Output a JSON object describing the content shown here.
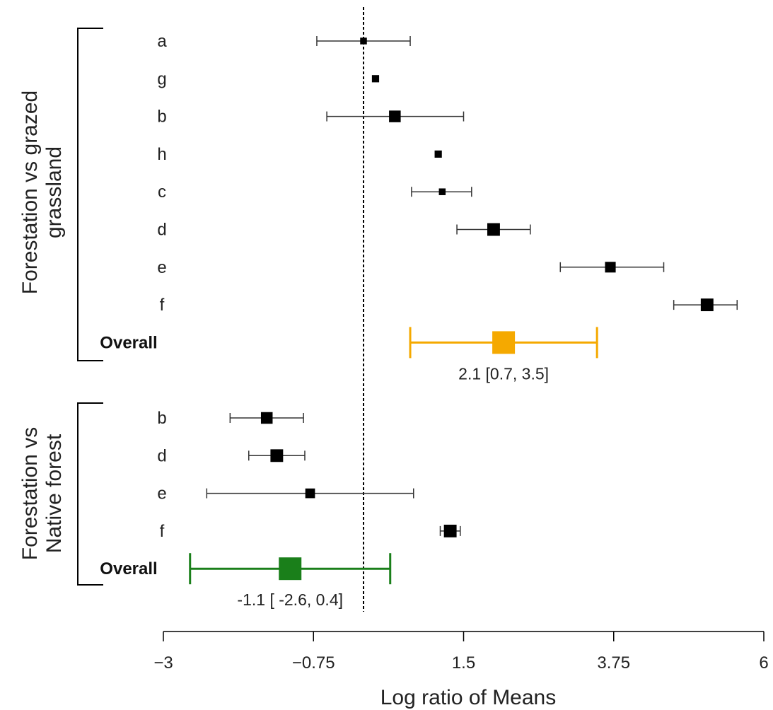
{
  "chart_data": {
    "type": "forest",
    "xlabel": "Log ratio of Means",
    "xlim": [
      -3,
      6
    ],
    "x_ticks": [
      -3,
      -0.75,
      1.5,
      3.75,
      6
    ],
    "x_tick_labels": [
      "−3",
      "−0.75",
      "1.5",
      "3.75",
      "6"
    ],
    "reference_line": 0,
    "reference_style": "dotted",
    "point_color": "#000000",
    "groups": [
      {
        "label_lines": [
          "Forestation vs grazed",
          "grassland"
        ],
        "rows": [
          {
            "label": "a",
            "est": 0.0,
            "lo": -0.7,
            "hi": 0.7,
            "weight": 0.25
          },
          {
            "label": "g",
            "est": 0.18,
            "lo": null,
            "hi": null,
            "weight": 0.3
          },
          {
            "label": "b",
            "est": 0.47,
            "lo": -0.55,
            "hi": 1.5,
            "weight": 0.75
          },
          {
            "label": "h",
            "est": 1.12,
            "lo": null,
            "hi": null,
            "weight": 0.3
          },
          {
            "label": "c",
            "est": 1.18,
            "lo": 0.72,
            "hi": 1.62,
            "weight": 0.25
          },
          {
            "label": "d",
            "est": 1.95,
            "lo": 1.4,
            "hi": 2.5,
            "weight": 0.85
          },
          {
            "label": "e",
            "est": 3.7,
            "lo": 2.95,
            "hi": 4.5,
            "weight": 0.65
          },
          {
            "label": "f",
            "est": 5.15,
            "lo": 4.65,
            "hi": 5.6,
            "weight": 0.85
          }
        ],
        "overall": {
          "label": "Overall",
          "est": 2.1,
          "lo": 0.7,
          "hi": 3.5,
          "color": "#f5a900",
          "text": "2.1 [0.7, 3.5]"
        }
      },
      {
        "label_lines": [
          "Forestation vs",
          "Native forest"
        ],
        "rows": [
          {
            "label": "b",
            "est": -1.45,
            "lo": -2.0,
            "hi": -0.9,
            "weight": 0.75
          },
          {
            "label": "d",
            "est": -1.3,
            "lo": -1.72,
            "hi": -0.88,
            "weight": 0.85
          },
          {
            "label": "e",
            "est": -0.8,
            "lo": -2.35,
            "hi": 0.75,
            "weight": 0.55
          },
          {
            "label": "f",
            "est": 1.3,
            "lo": 1.15,
            "hi": 1.45,
            "weight": 0.85
          }
        ],
        "overall": {
          "label": "Overall",
          "est": -1.1,
          "lo": -2.6,
          "hi": 0.4,
          "color": "#1a7f1a",
          "text": "-1.1 [ -2.6, 0.4]"
        }
      }
    ]
  }
}
